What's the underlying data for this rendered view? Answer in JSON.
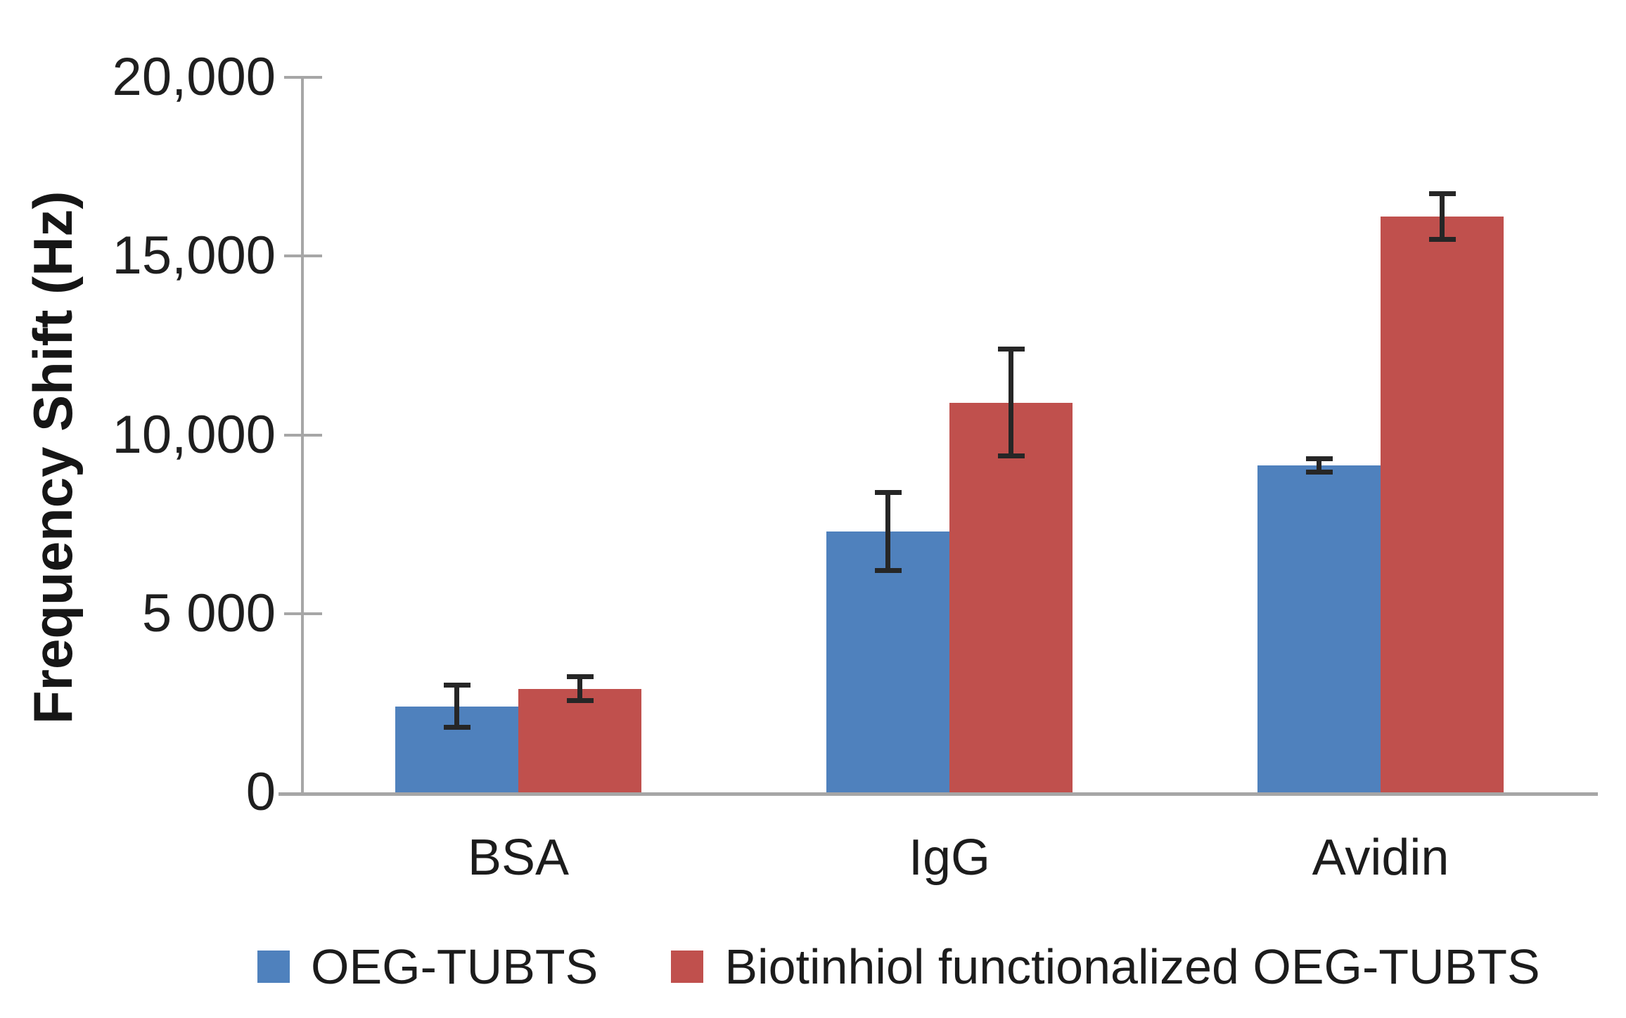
{
  "chart_data": {
    "type": "bar",
    "title": "",
    "xlabel": "",
    "ylabel": "Frequency Shift (Hz)",
    "categories": [
      "BSA",
      "IgG",
      "Avidin"
    ],
    "series": [
      {
        "name": "OEG-TUBTS",
        "color": "#4f81bd",
        "values": [
          2400,
          7300,
          9150
        ],
        "errors": [
          600,
          1100,
          200
        ]
      },
      {
        "name": "Biotinhiol functionalized OEG-TUBTS",
        "color": "#c0504d",
        "values": [
          2900,
          10900,
          16100
        ],
        "errors": [
          350,
          1500,
          650
        ]
      }
    ],
    "ylim": [
      0,
      20000
    ],
    "yticks": [
      {
        "value": 0,
        "label": "0"
      },
      {
        "value": 5000,
        "label": "5 000"
      },
      {
        "value": 10000,
        "label": "10,000"
      },
      {
        "value": 15000,
        "label": "15,000"
      },
      {
        "value": 20000,
        "label": "20,000"
      }
    ],
    "grid": false,
    "legend_position": "bottom",
    "error_bar_color": "#262626",
    "axis_color": "#a6a6a6"
  }
}
